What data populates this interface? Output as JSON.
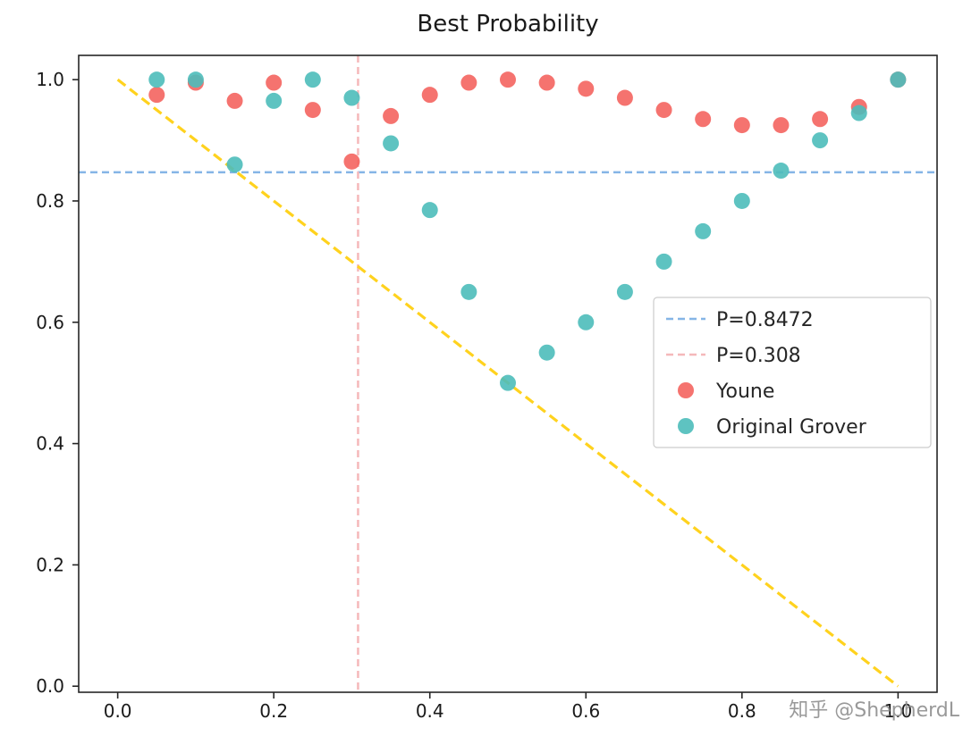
{
  "chart_data": {
    "type": "scatter",
    "title": "Best Probability",
    "xlabel": "",
    "ylabel": "",
    "xlim": [
      -0.05,
      1.05
    ],
    "ylim": [
      -0.01,
      1.04
    ],
    "x_ticks": [
      0.0,
      0.2,
      0.4,
      0.6,
      0.8,
      1.0
    ],
    "y_ticks": [
      0.0,
      0.2,
      0.4,
      0.6,
      0.8,
      1.0
    ],
    "grid": false,
    "legend_position": "center-right",
    "series": [
      {
        "name": "Youne",
        "color": "#f4645f",
        "marker": "circle",
        "x": [
          0.05,
          0.1,
          0.15,
          0.2,
          0.25,
          0.3,
          0.35,
          0.4,
          0.45,
          0.5,
          0.55,
          0.6,
          0.65,
          0.7,
          0.75,
          0.8,
          0.85,
          0.9,
          0.95,
          1.0
        ],
        "y": [
          0.975,
          0.995,
          0.965,
          0.995,
          0.95,
          0.865,
          0.94,
          0.975,
          0.995,
          1.0,
          0.995,
          0.985,
          0.97,
          0.95,
          0.935,
          0.925,
          0.925,
          0.935,
          0.955,
          1.0
        ]
      },
      {
        "name": "Original Grover",
        "color": "#4dbdba",
        "marker": "circle",
        "x": [
          0.05,
          0.1,
          0.15,
          0.2,
          0.25,
          0.3,
          0.35,
          0.4,
          0.45,
          0.5,
          0.55,
          0.6,
          0.65,
          0.7,
          0.75,
          0.8,
          0.85,
          0.9,
          0.95,
          1.0
        ],
        "y": [
          1.0,
          1.0,
          0.86,
          0.965,
          1.0,
          0.97,
          0.895,
          0.785,
          0.65,
          0.5,
          0.55,
          0.6,
          0.65,
          0.7,
          0.75,
          0.8,
          0.85,
          0.9,
          0.945,
          1.0
        ]
      }
    ],
    "reference_lines": [
      {
        "id": "blue-threshold",
        "label": "P=0.8472",
        "orientation": "horizontal",
        "value": 0.8472,
        "color": "#85b5e6",
        "dash": [
          8,
          5
        ],
        "width": 2.5,
        "in_legend": true
      },
      {
        "id": "pink-threshold",
        "label": "P=0.308",
        "orientation": "vertical",
        "value": 0.308,
        "color": "#f5b8ba",
        "dash": [
          8,
          5
        ],
        "width": 2.5,
        "in_legend": true
      },
      {
        "id": "diagonal",
        "label": "",
        "orientation": "segment",
        "x1": 0.0,
        "y1": 1.0,
        "x2": 1.0,
        "y2": 0.0,
        "color": "#ffd21e",
        "dash": [
          11,
          6
        ],
        "width": 3.2,
        "in_legend": false
      }
    ],
    "watermark": "知乎 @ShepherdL"
  }
}
